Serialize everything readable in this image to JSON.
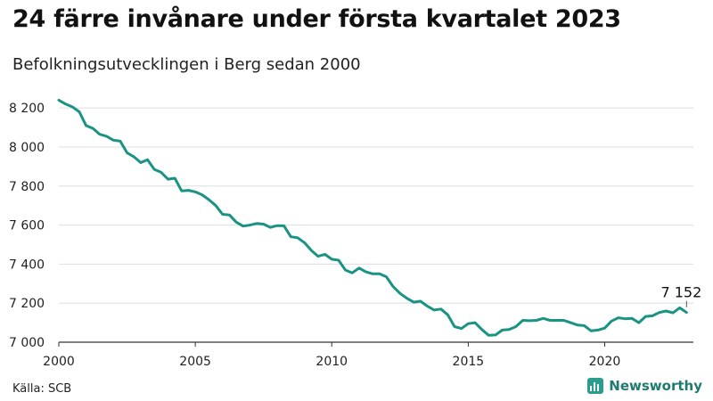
{
  "title": "24 färre invånare under första kvartalet 2023",
  "subtitle": "Befolkningsutvecklingen i Berg sedan 2000",
  "source": "Källa: SCB",
  "brand": {
    "name": "Newsworthy",
    "icon": "bar-chart-logo-icon"
  },
  "colors": {
    "line": "#1a9382",
    "grid": "#dddddd",
    "axis": "#333333",
    "brand": "#2a9d8f"
  },
  "chart_data": {
    "type": "line",
    "title": "24 färre invånare under första kvartalet 2023",
    "subtitle": "Befolkningsutvecklingen i Berg sedan 2000",
    "xlabel": "",
    "ylabel": "",
    "xlim": [
      2000,
      2023.25
    ],
    "ylim": [
      7000,
      8260
    ],
    "grid": true,
    "x_ticks": [
      2000,
      2005,
      2010,
      2015,
      2020
    ],
    "x_tick_labels": [
      "2000",
      "2005",
      "2010",
      "2015",
      "2020"
    ],
    "y_ticks": [
      7000,
      7200,
      7400,
      7600,
      7800,
      8000,
      8200
    ],
    "y_tick_labels": [
      "7 000",
      "7 200",
      "7 400",
      "7 600",
      "7 800",
      "8 000",
      "8 200"
    ],
    "last_value_label": "7 152",
    "series": [
      {
        "values": [
          [
            2000.0,
            8240
          ],
          [
            2000.25,
            8220
          ],
          [
            2000.5,
            8205
          ],
          [
            2000.75,
            8180
          ],
          [
            2001.0,
            8110
          ],
          [
            2001.25,
            8095
          ],
          [
            2001.5,
            8065
          ],
          [
            2001.75,
            8055
          ],
          [
            2002.0,
            8035
          ],
          [
            2002.25,
            8030
          ],
          [
            2002.5,
            7970
          ],
          [
            2002.75,
            7950
          ],
          [
            2003.0,
            7920
          ],
          [
            2003.25,
            7935
          ],
          [
            2003.5,
            7885
          ],
          [
            2003.75,
            7870
          ],
          [
            2004.0,
            7835
          ],
          [
            2004.25,
            7840
          ],
          [
            2004.5,
            7775
          ],
          [
            2004.75,
            7778
          ],
          [
            2005.0,
            7770
          ],
          [
            2005.25,
            7755
          ],
          [
            2005.5,
            7730
          ],
          [
            2005.75,
            7700
          ],
          [
            2006.0,
            7655
          ],
          [
            2006.25,
            7652
          ],
          [
            2006.5,
            7615
          ],
          [
            2006.75,
            7595
          ],
          [
            2007.0,
            7600
          ],
          [
            2007.25,
            7608
          ],
          [
            2007.5,
            7605
          ],
          [
            2007.75,
            7588
          ],
          [
            2008.0,
            7597
          ],
          [
            2008.25,
            7596
          ],
          [
            2008.5,
            7540
          ],
          [
            2008.75,
            7535
          ],
          [
            2009.0,
            7510
          ],
          [
            2009.25,
            7470
          ],
          [
            2009.5,
            7440
          ],
          [
            2009.75,
            7450
          ],
          [
            2010.0,
            7425
          ],
          [
            2010.25,
            7420
          ],
          [
            2010.5,
            7370
          ],
          [
            2010.75,
            7355
          ],
          [
            2011.0,
            7380
          ],
          [
            2011.25,
            7360
          ],
          [
            2011.5,
            7350
          ],
          [
            2011.75,
            7350
          ],
          [
            2012.0,
            7335
          ],
          [
            2012.25,
            7285
          ],
          [
            2012.5,
            7250
          ],
          [
            2012.75,
            7225
          ],
          [
            2013.0,
            7205
          ],
          [
            2013.25,
            7210
          ],
          [
            2013.5,
            7185
          ],
          [
            2013.75,
            7165
          ],
          [
            2014.0,
            7170
          ],
          [
            2014.25,
            7140
          ],
          [
            2014.5,
            7080
          ],
          [
            2014.75,
            7070
          ],
          [
            2015.0,
            7095
          ],
          [
            2015.25,
            7100
          ],
          [
            2015.5,
            7065
          ],
          [
            2015.75,
            7035
          ],
          [
            2016.0,
            7037
          ],
          [
            2016.25,
            7062
          ],
          [
            2016.5,
            7065
          ],
          [
            2016.75,
            7080
          ],
          [
            2017.0,
            7112
          ],
          [
            2017.25,
            7110
          ],
          [
            2017.5,
            7112
          ],
          [
            2017.75,
            7122
          ],
          [
            2018.0,
            7112
          ],
          [
            2018.25,
            7112
          ],
          [
            2018.5,
            7112
          ],
          [
            2018.75,
            7100
          ],
          [
            2019.0,
            7088
          ],
          [
            2019.25,
            7085
          ],
          [
            2019.5,
            7058
          ],
          [
            2019.75,
            7062
          ],
          [
            2020.0,
            7072
          ],
          [
            2020.25,
            7108
          ],
          [
            2020.5,
            7125
          ],
          [
            2020.75,
            7120
          ],
          [
            2021.0,
            7122
          ],
          [
            2021.25,
            7100
          ],
          [
            2021.5,
            7132
          ],
          [
            2021.75,
            7135
          ],
          [
            2022.0,
            7152
          ],
          [
            2022.25,
            7160
          ],
          [
            2022.5,
            7150
          ],
          [
            2022.75,
            7176
          ],
          [
            2023.0,
            7152
          ]
        ]
      }
    ]
  }
}
